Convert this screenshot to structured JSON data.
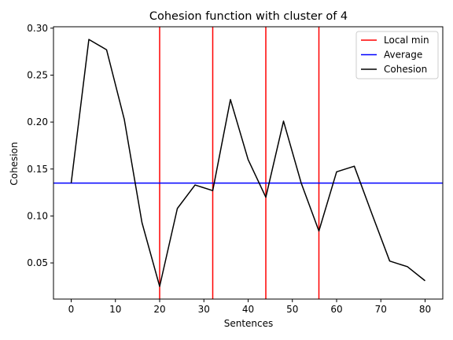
{
  "chart_data": {
    "type": "line",
    "title": "Cohesion function with cluster of 4",
    "xlabel": "Sentences",
    "ylabel": "Cohesion",
    "xlim": [
      -4,
      84
    ],
    "ylim": [
      0.0115,
      0.3015
    ],
    "xticks": [
      0,
      10,
      20,
      30,
      40,
      50,
      60,
      70,
      80
    ],
    "yticks": [
      0.05,
      0.1,
      0.15,
      0.2,
      0.25,
      0.3
    ],
    "ytick_labels": [
      "0.05",
      "0.10",
      "0.15",
      "0.20",
      "0.25",
      "0.30"
    ],
    "grid": false,
    "legend_position": "top-right",
    "series": [
      {
        "name": "Local min",
        "kind": "vlines",
        "color": "#ff0000",
        "x": [
          20,
          32,
          44,
          56
        ]
      },
      {
        "name": "Average",
        "kind": "hline",
        "color": "#0000ff",
        "y": 0.135
      },
      {
        "name": "Cohesion",
        "kind": "line",
        "color": "#000000",
        "x": [
          0,
          4,
          8,
          12,
          16,
          20,
          24,
          28,
          32,
          36,
          40,
          44,
          48,
          52,
          56,
          60,
          64,
          68,
          72,
          76,
          80
        ],
        "y": [
          0.135,
          0.288,
          0.277,
          0.203,
          0.093,
          0.025,
          0.108,
          0.133,
          0.127,
          0.224,
          0.16,
          0.12,
          0.201,
          0.135,
          0.084,
          0.147,
          0.153,
          0.102,
          0.052,
          0.046,
          0.031
        ]
      }
    ]
  }
}
